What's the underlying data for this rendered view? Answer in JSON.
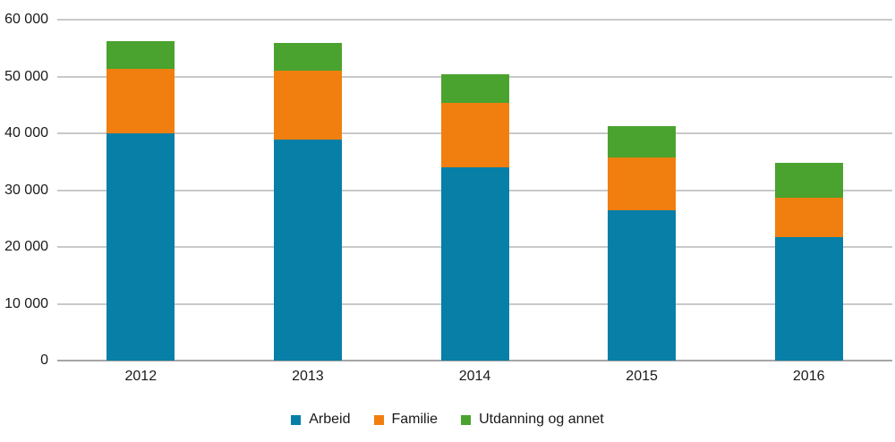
{
  "chart_data": {
    "type": "bar",
    "stacked": true,
    "categories": [
      "2012",
      "2013",
      "2014",
      "2015",
      "2016"
    ],
    "series": [
      {
        "name": "Arbeid",
        "color": "#077fa6",
        "values": [
          40000,
          38900,
          34000,
          26500,
          21800
        ]
      },
      {
        "name": "Familie",
        "color": "#f07f10",
        "values": [
          11300,
          12100,
          11300,
          9200,
          6800
        ]
      },
      {
        "name": "Utdanning og annet",
        "color": "#4aa32e",
        "values": [
          5000,
          4900,
          5100,
          5500,
          6200
        ]
      }
    ],
    "title": "",
    "xlabel": "",
    "ylabel": "",
    "ylim": [
      0,
      60000
    ],
    "ytick_step": 10000,
    "ytick_labels": [
      "0",
      "10 000",
      "20 000",
      "30 000",
      "40 000",
      "50 000",
      "60 000"
    ],
    "grid": true,
    "legend_position": "bottom"
  },
  "colors": {
    "gridline": "#c9c9c9",
    "axis_line": "#a6a6a6",
    "text": "#1a1a1a",
    "background": "#ffffff"
  }
}
